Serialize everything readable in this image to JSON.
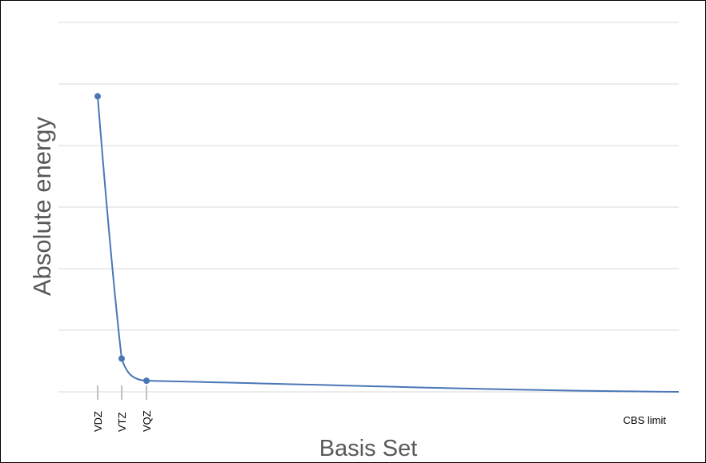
{
  "chart_data": {
    "type": "line",
    "title": "",
    "xlabel": "Basis Set",
    "ylabel": "Absolute energy",
    "categories": [
      "VDZ",
      "VTZ",
      "VQZ",
      "CBS limit"
    ],
    "series": [
      {
        "values": [
          0.8,
          0.09,
          0.03,
          0.0
        ]
      }
    ],
    "ylim": [
      0,
      1
    ],
    "grid": true,
    "legend": "none",
    "colors": {
      "line": "#4a76b7",
      "grid": "#d9d9d9",
      "tick": "#bfbfbf",
      "axis_title": "#595959"
    }
  }
}
